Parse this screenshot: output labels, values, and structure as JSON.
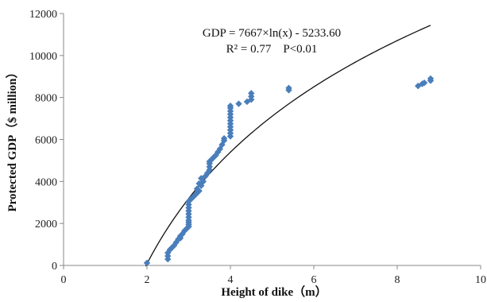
{
  "chart_data": {
    "type": "scatter",
    "xlabel": "Height of dike（m）",
    "ylabel": "Protected GDP（$ million）",
    "xlim": [
      0,
      10
    ],
    "ylim": [
      0,
      12000
    ],
    "x_ticks": [
      "0",
      "2",
      "4",
      "6",
      "8",
      "10"
    ],
    "y_ticks": [
      "0",
      "2000",
      "4000",
      "6000",
      "8000",
      "10000",
      "12000"
    ],
    "grid": false,
    "marker_color": "#4a7ebb",
    "trendline_color": "#111111",
    "annotations": [
      "GDP = 7667×ln(x) - 5233.60",
      "R² = 0.77    P<0.01"
    ],
    "trendline": {
      "type": "log",
      "a": 7667,
      "b": -5233.6,
      "x_range": [
        1.97,
        8.8
      ]
    },
    "points": [
      [
        2.0,
        120
      ],
      [
        2.5,
        300
      ],
      [
        2.5,
        450
      ],
      [
        2.5,
        600
      ],
      [
        2.55,
        750
      ],
      [
        2.6,
        850
      ],
      [
        2.65,
        950
      ],
      [
        2.7,
        1100
      ],
      [
        2.75,
        1250
      ],
      [
        2.8,
        1300
      ],
      [
        2.8,
        1400
      ],
      [
        2.85,
        1500
      ],
      [
        2.9,
        1650
      ],
      [
        2.95,
        1750
      ],
      [
        3.0,
        1850
      ],
      [
        3.0,
        1950
      ],
      [
        3.0,
        2050
      ],
      [
        3.0,
        2150
      ],
      [
        3.0,
        2300
      ],
      [
        3.0,
        2450
      ],
      [
        3.0,
        2600
      ],
      [
        3.0,
        2750
      ],
      [
        3.0,
        2900
      ],
      [
        3.0,
        3050
      ],
      [
        3.05,
        3150
      ],
      [
        3.1,
        3250
      ],
      [
        3.15,
        3350
      ],
      [
        3.2,
        3450
      ],
      [
        3.25,
        3550
      ],
      [
        3.2,
        3650
      ],
      [
        3.3,
        3800
      ],
      [
        3.25,
        3900
      ],
      [
        3.35,
        4000
      ],
      [
        3.3,
        4150
      ],
      [
        3.4,
        4250
      ],
      [
        3.45,
        4400
      ],
      [
        3.5,
        4550
      ],
      [
        3.5,
        4700
      ],
      [
        3.5,
        4850
      ],
      [
        3.5,
        4950
      ],
      [
        3.55,
        5050
      ],
      [
        3.6,
        5150
      ],
      [
        3.65,
        5250
      ],
      [
        3.7,
        5400
      ],
      [
        3.75,
        5550
      ],
      [
        3.8,
        5750
      ],
      [
        3.85,
        5950
      ],
      [
        3.85,
        6050
      ],
      [
        4.0,
        6150
      ],
      [
        4.0,
        6300
      ],
      [
        4.0,
        6450
      ],
      [
        4.0,
        6600
      ],
      [
        4.0,
        6750
      ],
      [
        4.0,
        6900
      ],
      [
        4.0,
        7050
      ],
      [
        4.0,
        7200
      ],
      [
        4.0,
        7350
      ],
      [
        4.0,
        7500
      ],
      [
        4.0,
        7600
      ],
      [
        4.2,
        7700
      ],
      [
        4.4,
        7800
      ],
      [
        4.5,
        7900
      ],
      [
        4.5,
        8050
      ],
      [
        4.5,
        8200
      ],
      [
        5.4,
        8350
      ],
      [
        5.4,
        8450
      ],
      [
        8.5,
        8550
      ],
      [
        8.6,
        8650
      ],
      [
        8.65,
        8700
      ],
      [
        8.8,
        8800
      ],
      [
        8.8,
        8900
      ]
    ]
  }
}
